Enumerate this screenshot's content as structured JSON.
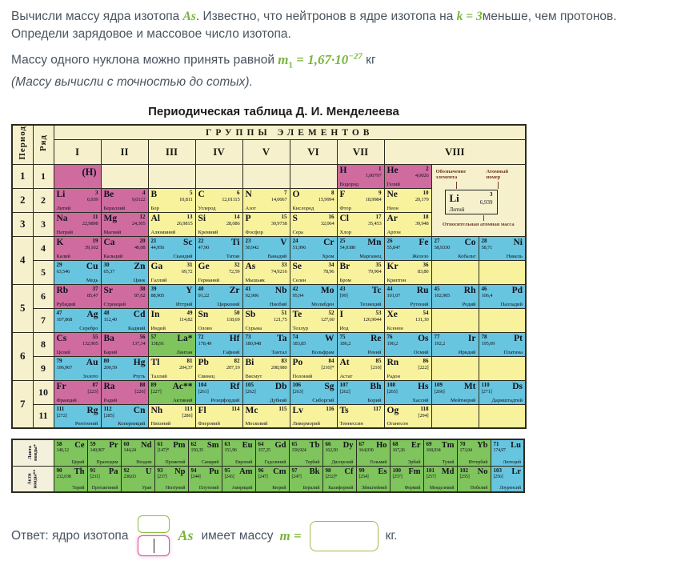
{
  "colors": {
    "accent_green": "#79b63c",
    "focus_pink": "#d84d9f",
    "cell_pink": "#cf6b9f",
    "cell_yellow": "#f8f29c",
    "cell_blue": "#67c5df",
    "cell_green": "#7fc45c",
    "cell_cream": "#f6f1cc",
    "table_border": "#2b2b22",
    "input_border_green": "#a5b84e"
  },
  "task": {
    "line1_pre": "Вычисли массу ядра изотопа ",
    "line1_math1": "As",
    "line1_mid": ". Известно, что нейтронов в ядре изотопа на ",
    "line1_math2": "k = 3",
    "line1_post": "меньше, чем протонов.",
    "line2": "Определи зарядовое и массовое число изотопа.",
    "line3_pre": "Массу одного нуклона можно принять равной ",
    "line3_math_var": "m",
    "line3_math_sub": "1",
    "line3_math_eq": " = 1,67·10",
    "line3_math_exp": "−27",
    "line3_post": " кг",
    "line4": "(Массу вычисли с точностью до сотых)."
  },
  "table": {
    "title": "Периодическая таблица Д. И. Менделеева",
    "header": {
      "period": "Период",
      "row": "Ряд",
      "groups_title": "ГРУППЫ ЭЛЕМЕНТОВ",
      "groups": [
        "I",
        "II",
        "III",
        "IV",
        "V",
        "VI",
        "VII",
        "VIII"
      ]
    },
    "legend": {
      "designation": "Обозначение элемента",
      "atomic_number": "Атомный номер",
      "example_sym": "Li",
      "example_num": "3",
      "example_mass": "6,939",
      "example_name": "Литий",
      "relative_mass": "Относительная атомная масса"
    },
    "rows": [
      {
        "period": "1",
        "pspan": 1,
        "row": "1",
        "legend": true,
        "cells": [
          [
            "(H)",
            "",
            "",
            "",
            "p"
          ],
          [
            "",
            "",
            "",
            "",
            "c"
          ],
          [
            "",
            "",
            "",
            "",
            "c"
          ],
          [
            "",
            "",
            "",
            "",
            "c"
          ],
          [
            "",
            "",
            "",
            "",
            "c"
          ],
          [
            "",
            "",
            "",
            "",
            "c"
          ],
          [
            "H",
            "1",
            "1,00797",
            "Водород",
            "p"
          ],
          [
            "He",
            "2",
            "4,0026",
            "Гелий",
            "p"
          ]
        ]
      },
      {
        "period": "2",
        "pspan": 1,
        "row": "2",
        "cells": [
          [
            "Li",
            "3",
            "6,939",
            "Литий",
            "p"
          ],
          [
            "Be",
            "4",
            "9,0122",
            "Бериллий",
            "p"
          ],
          [
            "B",
            "5",
            "10,811",
            "Бор",
            "y"
          ],
          [
            "C",
            "6",
            "12,01115",
            "Углерод",
            "y"
          ],
          [
            "N",
            "7",
            "14,0067",
            "Азот",
            "y"
          ],
          [
            "O",
            "8",
            "15,9994",
            "Кислород",
            "y"
          ],
          [
            "F",
            "9",
            "18,9984",
            "Фтор",
            "y"
          ],
          [
            "Ne",
            "10",
            "20,179",
            "Неон",
            "y"
          ]
        ]
      },
      {
        "period": "3",
        "pspan": 1,
        "row": "3",
        "cells": [
          [
            "Na",
            "11",
            "22,9898",
            "Натрий",
            "p"
          ],
          [
            "Mg",
            "12",
            "24,305",
            "Магний",
            "p"
          ],
          [
            "Al",
            "13",
            "26,9815",
            "Алюминий",
            "y"
          ],
          [
            "Si",
            "14",
            "28,086",
            "Кремний",
            "y"
          ],
          [
            "P",
            "15",
            "30,9738",
            "Фосфор",
            "y"
          ],
          [
            "S",
            "16",
            "32,064",
            "Сера",
            "y"
          ],
          [
            "Cl",
            "17",
            "35,453",
            "Хлор",
            "y"
          ],
          [
            "Ar",
            "18",
            "39,948",
            "Аргон",
            "y"
          ]
        ]
      },
      {
        "period": "4",
        "pspan": 2,
        "row": "4",
        "cells": [
          [
            "K",
            "19",
            "39,102",
            "Калий",
            "p"
          ],
          [
            "Ca",
            "20",
            "40,08",
            "Кальций",
            "p"
          ],
          [
            "Sc",
            "21",
            "44,956",
            "Скандий",
            "b"
          ],
          [
            "Ti",
            "22",
            "47,90",
            "Титан",
            "b"
          ],
          [
            "V",
            "23",
            "50,942",
            "Ванадий",
            "b"
          ],
          [
            "Cr",
            "24",
            "51,996",
            "Хром",
            "b"
          ],
          [
            "Mn",
            "25",
            "54,9380",
            "Марганец",
            "b"
          ],
          [
            "Fe",
            "26",
            "55,847",
            "Железо",
            "b"
          ],
          [
            "Co",
            "27",
            "58,9330",
            "Кобальт",
            "b"
          ],
          [
            "Ni",
            "28",
            "58,71",
            "Никель",
            "b"
          ]
        ]
      },
      {
        "row": "5",
        "cells": [
          [
            "Cu",
            "29",
            "63,546",
            "Медь",
            "b"
          ],
          [
            "Zn",
            "30",
            "65,37",
            "Цинк",
            "b"
          ],
          [
            "Ga",
            "31",
            "69,72",
            "Галлий",
            "y"
          ],
          [
            "Ge",
            "32",
            "72,59",
            "Германий",
            "y"
          ],
          [
            "As",
            "33",
            "74,9216",
            "Мышьяк",
            "y"
          ],
          [
            "Se",
            "34",
            "78,96",
            "Селен",
            "y"
          ],
          [
            "Br",
            "35",
            "79,904",
            "Бром",
            "y"
          ],
          [
            "Kr",
            "36",
            "83,80",
            "Криптон",
            "y"
          ],
          [
            "",
            "",
            "",
            "",
            "ye"
          ],
          [
            "",
            "",
            "",
            "",
            "ye"
          ]
        ]
      },
      {
        "period": "5",
        "pspan": 2,
        "row": "6",
        "cells": [
          [
            "Rb",
            "37",
            "85,47",
            "Рубидий",
            "p"
          ],
          [
            "Sr",
            "38",
            "87,62",
            "Стронций",
            "p"
          ],
          [
            "Y",
            "39",
            "88,905",
            "Иттрий",
            "b"
          ],
          [
            "Zr",
            "40",
            "91,22",
            "Цирконий",
            "b"
          ],
          [
            "Nb",
            "41",
            "92,906",
            "Ниобий",
            "b"
          ],
          [
            "Mo",
            "42",
            "95,94",
            "Молибден",
            "b"
          ],
          [
            "Tc",
            "43",
            "[99]",
            "Технеций",
            "b"
          ],
          [
            "Ru",
            "44",
            "101,07",
            "Рутений",
            "b"
          ],
          [
            "Rh",
            "45",
            "102,905",
            "Родий",
            "b"
          ],
          [
            "Pd",
            "46",
            "106,4",
            "Палладий",
            "b"
          ]
        ]
      },
      {
        "row": "7",
        "cells": [
          [
            "Ag",
            "47",
            "107,868",
            "Серебро",
            "b"
          ],
          [
            "Cd",
            "48",
            "112,40",
            "Кадмий",
            "b"
          ],
          [
            "In",
            "49",
            "114,82",
            "Индий",
            "y"
          ],
          [
            "Sn",
            "50",
            "118,69",
            "Олово",
            "y"
          ],
          [
            "Sb",
            "51",
            "121,75",
            "Сурьма",
            "y"
          ],
          [
            "Te",
            "52",
            "127,60",
            "Теллур",
            "y"
          ],
          [
            "I",
            "53",
            "126,9044",
            "Иод",
            "y"
          ],
          [
            "Xe",
            "54",
            "131,30",
            "Ксенон",
            "y"
          ],
          [
            "",
            "",
            "",
            "",
            "ye"
          ],
          [
            "",
            "",
            "",
            "",
            "ye"
          ]
        ]
      },
      {
        "period": "6",
        "pspan": 2,
        "row": "8",
        "cells": [
          [
            "Cs",
            "55",
            "132,905",
            "Цезий",
            "p"
          ],
          [
            "Ba",
            "56",
            "137,34",
            "Барий",
            "p"
          ],
          [
            "La*",
            "57",
            "138,91",
            "Лантан",
            "g"
          ],
          [
            "Hf",
            "72",
            "178,49",
            "Гафний",
            "b"
          ],
          [
            "Ta",
            "73",
            "180,948",
            "Тантал",
            "b"
          ],
          [
            "W",
            "74",
            "183,85",
            "Вольфрам",
            "b"
          ],
          [
            "Re",
            "75",
            "186,2",
            "Рений",
            "b"
          ],
          [
            "Os",
            "76",
            "190,2",
            "Осмий",
            "b"
          ],
          [
            "Ir",
            "77",
            "192,2",
            "Иридий",
            "b"
          ],
          [
            "Pt",
            "78",
            "195,09",
            "Платина",
            "b"
          ]
        ]
      },
      {
        "row": "9",
        "cells": [
          [
            "Au",
            "79",
            "196,967",
            "Золото",
            "b"
          ],
          [
            "Hg",
            "80",
            "200,59",
            "Ртуть",
            "b"
          ],
          [
            "Tl",
            "81",
            "204,37",
            "Таллий",
            "y"
          ],
          [
            "Pb",
            "82",
            "207,19",
            "Свинец",
            "y"
          ],
          [
            "Bi",
            "83",
            "208,980",
            "Висмут",
            "y"
          ],
          [
            "Po",
            "84",
            "[210]*",
            "Полоний",
            "y"
          ],
          [
            "At",
            "85",
            "[210]",
            "Астат",
            "y"
          ],
          [
            "Rn",
            "86",
            "[222]",
            "Радон",
            "y"
          ],
          [
            "",
            "",
            "",
            "",
            "ye"
          ],
          [
            "",
            "",
            "",
            "",
            "ye"
          ]
        ]
      },
      {
        "period": "7",
        "pspan": 2,
        "row": "10",
        "cells": [
          [
            "Fr",
            "87",
            "[223]",
            "Франций",
            "p"
          ],
          [
            "Ra",
            "88",
            "[226]",
            "Радий",
            "p"
          ],
          [
            "Ac**",
            "89",
            "[227]",
            "Актиний",
            "g"
          ],
          [
            "Rf",
            "104",
            "[261]",
            "Резерфордий",
            "b"
          ],
          [
            "Db",
            "105",
            "[262]",
            "Дубний",
            "b"
          ],
          [
            "Sg",
            "106",
            "[263]",
            "Сиборгий",
            "b"
          ],
          [
            "Bh",
            "107",
            "[262]",
            "Борий",
            "b"
          ],
          [
            "Hs",
            "108",
            "[265]",
            "Хассий",
            "b"
          ],
          [
            "Mt",
            "109",
            "[266]",
            "Мейтнерий",
            "b"
          ],
          [
            "Ds",
            "110",
            "[271]",
            "Дармштадтий",
            "b"
          ]
        ]
      },
      {
        "row": "11",
        "cells": [
          [
            "Rg",
            "111",
            "[272]",
            "Рентгений",
            "b"
          ],
          [
            "Cn",
            "112",
            "[285]",
            "Коперниций",
            "b"
          ],
          [
            "Nh",
            "113",
            "[286]",
            "Нихоний",
            "y"
          ],
          [
            "Fl",
            "114",
            "",
            "Флеровий",
            "y"
          ],
          [
            "Mc",
            "115",
            "",
            "Московий",
            "y"
          ],
          [
            "Lv",
            "116",
            "",
            "Ливерморий",
            "y"
          ],
          [
            "Ts",
            "117",
            "",
            "Теннессин",
            "y"
          ],
          [
            "Og",
            "118",
            "[294]",
            "Оганесон",
            "y"
          ],
          [
            "",
            "",
            "",
            "",
            "ye"
          ],
          [
            "",
            "",
            "",
            "",
            "ye"
          ]
        ]
      }
    ],
    "f_block": {
      "lanthanides_label_1": "Ланта",
      "lanthanides_label_2": "ноиды*",
      "actinides_label_1": "Акти",
      "actinides_label_2": "ноиды**",
      "lanthanides": [
        [
          "Ce",
          "58",
          "140,12",
          "Церий",
          "g"
        ],
        [
          "Pr",
          "59",
          "140,907",
          "Празеодим",
          "g"
        ],
        [
          "Nd",
          "60",
          "144,24",
          "Неодим",
          "g"
        ],
        [
          "Pm",
          "61",
          "[147]*",
          "Прометий",
          "g"
        ],
        [
          "Sm",
          "62",
          "150,35",
          "Самарий",
          "g"
        ],
        [
          "Eu",
          "63",
          "151,96",
          "Европий",
          "g"
        ],
        [
          "Gd",
          "64",
          "157,25",
          "Гадолиний",
          "g"
        ],
        [
          "Tb",
          "65",
          "158,924",
          "Тербий",
          "g"
        ],
        [
          "Dy",
          "66",
          "162,50",
          "Диспрозий",
          "g"
        ],
        [
          "Ho",
          "67",
          "164,930",
          "Гольмий",
          "g"
        ],
        [
          "Er",
          "68",
          "167,26",
          "Эрбий",
          "g"
        ],
        [
          "Tm",
          "69",
          "168,934",
          "Тулий",
          "g"
        ],
        [
          "Yb",
          "70",
          "173,04",
          "Иттербий",
          "g"
        ],
        [
          "Lu",
          "71",
          "174,97",
          "Лютеций",
          "b"
        ]
      ],
      "actinides": [
        [
          "Th",
          "90",
          "232,038",
          "Торий",
          "g"
        ],
        [
          "Pa",
          "91",
          "[231]",
          "Протактиний",
          "g"
        ],
        [
          "U",
          "92",
          "238,03",
          "Уран",
          "g"
        ],
        [
          "Np",
          "93",
          "[237]",
          "Нептуний",
          "g"
        ],
        [
          "Pu",
          "94",
          "[244]",
          "Плутоний",
          "g"
        ],
        [
          "Am",
          "95",
          "[243]",
          "Америций",
          "g"
        ],
        [
          "Cm",
          "96",
          "[247]",
          "Кюрий",
          "g"
        ],
        [
          "Bk",
          "97",
          "[247]",
          "Берклий",
          "g"
        ],
        [
          "Cf",
          "98",
          "[252]*",
          "Калифорний",
          "g"
        ],
        [
          "Es",
          "99",
          "[254]",
          "Эйнштейний",
          "g"
        ],
        [
          "Fm",
          "100",
          "[257]",
          "Фермий",
          "g"
        ],
        [
          "Md",
          "101",
          "[257]",
          "Менделевий",
          "g"
        ],
        [
          "No",
          "102",
          "[255]",
          "Нобелий",
          "g"
        ],
        [
          "Lr",
          "103",
          "[256]",
          "Лоуренсий",
          "b"
        ]
      ]
    }
  },
  "answer": {
    "pre": "Ответ: ядро изотопа",
    "mass_box_value": "",
    "charge_box_value": "",
    "isotope": "As",
    "mid": "имеет массу",
    "m_eq": "m =",
    "mass_input_value": "",
    "unit": "кг."
  }
}
